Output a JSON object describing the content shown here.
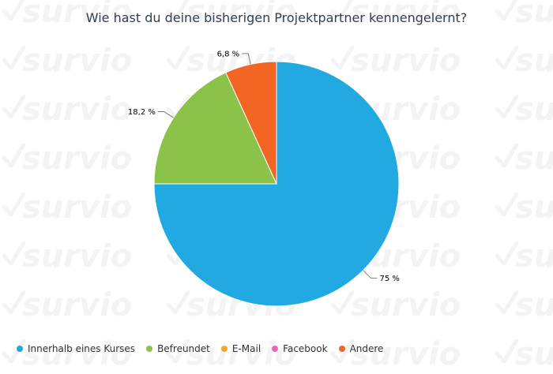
{
  "watermark_text": "survio",
  "chart_data": {
    "type": "pie",
    "title": "Wie hast du deine bisherigen Projektpartner kennengelernt?",
    "series": [
      {
        "name": "Innerhalb eines Kurses",
        "value": 75,
        "label": "75 %",
        "color": "#22a9e1"
      },
      {
        "name": "Befreundet",
        "value": 18.2,
        "label": "18,2 %",
        "color": "#8bc34a"
      },
      {
        "name": "E-Mail",
        "value": 0,
        "label": "",
        "color": "#f5a623"
      },
      {
        "name": "Facebook",
        "value": 0,
        "label": "",
        "color": "#e46ab8"
      },
      {
        "name": "Andere",
        "value": 6.8,
        "label": "6,8 %",
        "color": "#f26522"
      }
    ],
    "legend_position": "bottom-left"
  }
}
